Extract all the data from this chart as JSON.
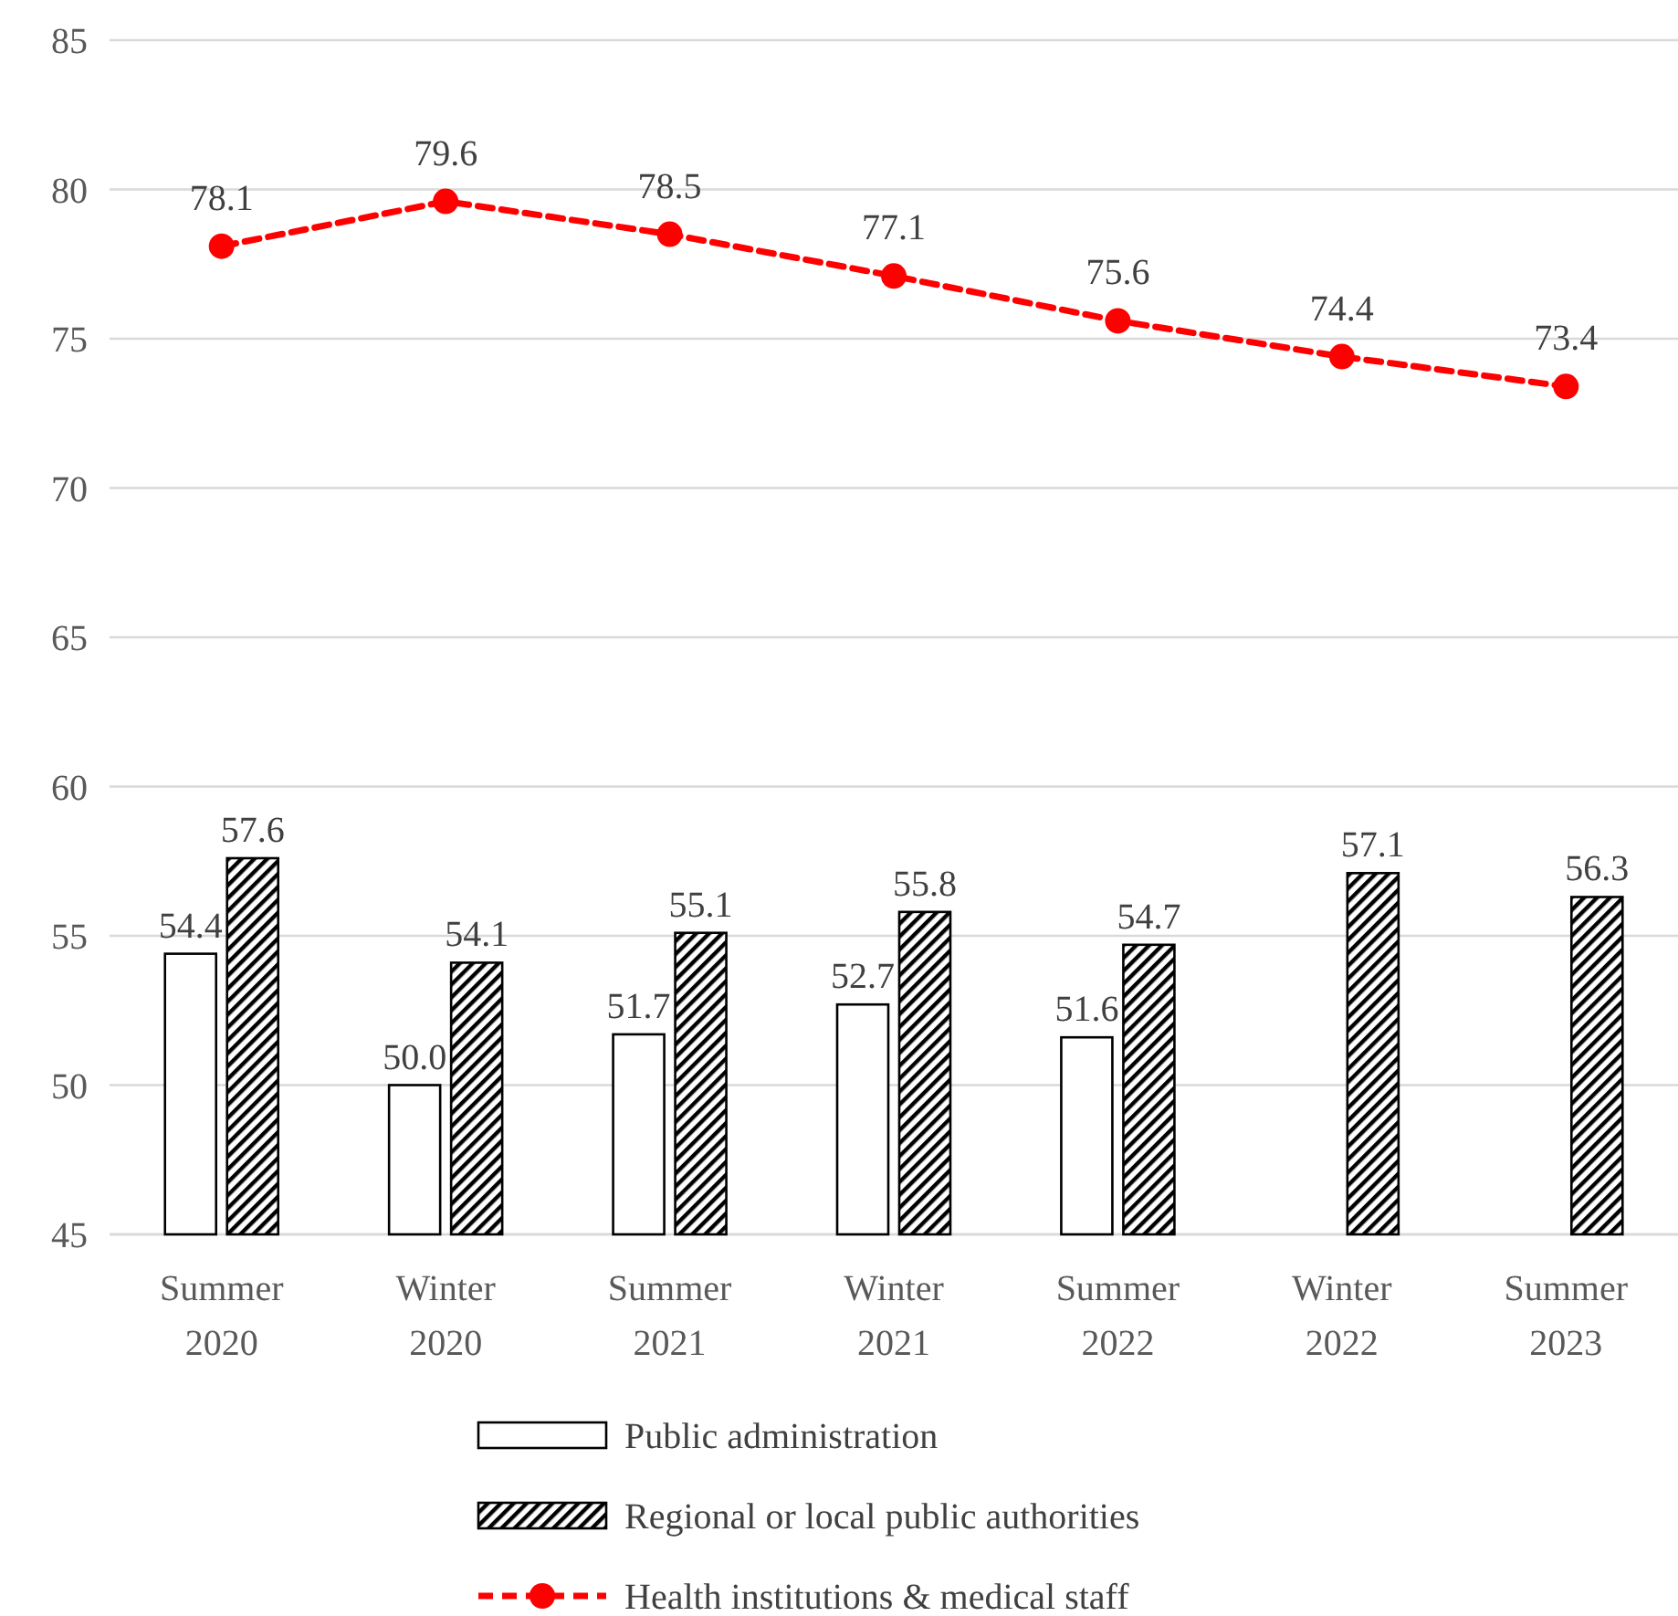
{
  "chart_data": {
    "type": "bar",
    "categories": [
      "Summer 2020",
      "Winter 2020",
      "Summer 2021",
      "Winter 2021",
      "Summer 2022",
      "Winter 2022",
      "Summer 2023"
    ],
    "series": [
      {
        "name": "Public administration",
        "color": "#ffffff",
        "values": [
          54.4,
          50.0,
          51.7,
          52.7,
          51.6,
          null,
          null
        ],
        "value_labels": [
          "54.4",
          "50.0",
          "51.7",
          "52.7",
          "51.6",
          null,
          null
        ]
      },
      {
        "name": "Regional or local public authorities",
        "color": "#000000",
        "values": [
          57.6,
          54.1,
          55.1,
          55.8,
          54.7,
          57.1,
          56.3
        ],
        "value_labels": [
          "57.6",
          "54.1",
          "55.1",
          "55.8",
          "54.7",
          "57.1",
          "56.3"
        ]
      },
      {
        "name": "Health institutions & medical staff",
        "type": "line",
        "color": "#ff0000",
        "marker": "circle",
        "line_style": "dashed",
        "values": [
          78.1,
          79.6,
          78.5,
          77.1,
          75.6,
          74.4,
          73.4
        ],
        "value_labels": [
          "78.1",
          "79.6",
          "78.5",
          "77.1",
          "75.6",
          "74.4",
          "73.4"
        ]
      }
    ],
    "ylim": [
      45,
      85
    ],
    "yticks": [
      45,
      50,
      55,
      60,
      65,
      70,
      75,
      80,
      85
    ],
    "grid": "y",
    "legend": "bottom"
  }
}
